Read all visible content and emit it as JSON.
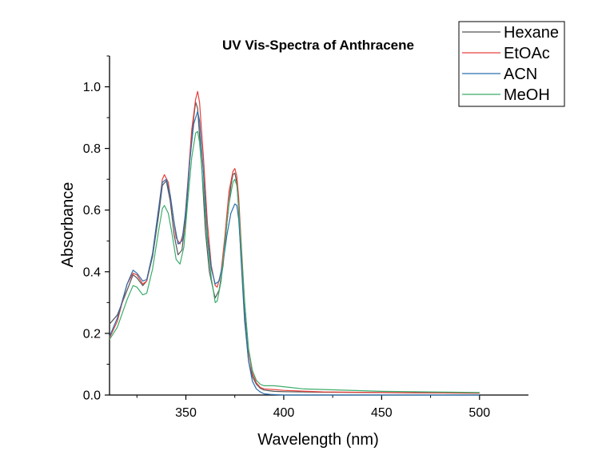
{
  "chart_data": {
    "type": "line",
    "title": "UV Vis-Spectra of Anthracene",
    "xlabel": "Wavelength (nm)",
    "ylabel": "Absorbance",
    "xlim": [
      311,
      525
    ],
    "ylim": [
      0,
      1.1
    ],
    "x_ticks": [
      350,
      400,
      450,
      500
    ],
    "x_tick_labels": [
      "350",
      "400",
      "450",
      "500"
    ],
    "y_ticks": [
      0.0,
      0.2,
      0.4,
      0.6,
      0.8,
      1.0
    ],
    "y_tick_labels": [
      "0.0",
      "0.2",
      "0.4",
      "0.6",
      "0.8",
      "1.0"
    ],
    "grid": false,
    "legend_position": "top-right",
    "series": [
      {
        "name": "Hexane",
        "color": "#555555",
        "points": [
          [
            311,
            0.23
          ],
          [
            315,
            0.26
          ],
          [
            320,
            0.34
          ],
          [
            323,
            0.39
          ],
          [
            325,
            0.38
          ],
          [
            328,
            0.355
          ],
          [
            330,
            0.37
          ],
          [
            333,
            0.45
          ],
          [
            336,
            0.58
          ],
          [
            338,
            0.68
          ],
          [
            340,
            0.695
          ],
          [
            342,
            0.63
          ],
          [
            344,
            0.52
          ],
          [
            346,
            0.455
          ],
          [
            348,
            0.47
          ],
          [
            350,
            0.58
          ],
          [
            352,
            0.76
          ],
          [
            354,
            0.9
          ],
          [
            355,
            0.95
          ],
          [
            356,
            0.93
          ],
          [
            358,
            0.75
          ],
          [
            360,
            0.53
          ],
          [
            362,
            0.4
          ],
          [
            364,
            0.34
          ],
          [
            365,
            0.315
          ],
          [
            367,
            0.34
          ],
          [
            369,
            0.42
          ],
          [
            371,
            0.56
          ],
          [
            373,
            0.68
          ],
          [
            374,
            0.715
          ],
          [
            375,
            0.72
          ],
          [
            376,
            0.69
          ],
          [
            377,
            0.6
          ],
          [
            378,
            0.46
          ],
          [
            380,
            0.24
          ],
          [
            382,
            0.11
          ],
          [
            384,
            0.06
          ],
          [
            386,
            0.035
          ],
          [
            388,
            0.022
          ],
          [
            390,
            0.016
          ],
          [
            395,
            0.012
          ],
          [
            400,
            0.011
          ],
          [
            420,
            0.009
          ],
          [
            450,
            0.008
          ],
          [
            500,
            0.006
          ]
        ]
      },
      {
        "name": "EtOAc",
        "color": "#e8413c",
        "points": [
          [
            311,
            0.185
          ],
          [
            315,
            0.24
          ],
          [
            320,
            0.36
          ],
          [
            323,
            0.395
          ],
          [
            325,
            0.39
          ],
          [
            328,
            0.36
          ],
          [
            330,
            0.37
          ],
          [
            333,
            0.46
          ],
          [
            336,
            0.6
          ],
          [
            338,
            0.7
          ],
          [
            339,
            0.715
          ],
          [
            341,
            0.69
          ],
          [
            343,
            0.6
          ],
          [
            345,
            0.51
          ],
          [
            347,
            0.49
          ],
          [
            349,
            0.53
          ],
          [
            351,
            0.69
          ],
          [
            353,
            0.86
          ],
          [
            355,
            0.96
          ],
          [
            356,
            0.985
          ],
          [
            357,
            0.95
          ],
          [
            359,
            0.77
          ],
          [
            361,
            0.56
          ],
          [
            363,
            0.42
          ],
          [
            365,
            0.355
          ],
          [
            366,
            0.35
          ],
          [
            368,
            0.4
          ],
          [
            370,
            0.52
          ],
          [
            372,
            0.66
          ],
          [
            374,
            0.725
          ],
          [
            375,
            0.735
          ],
          [
            376,
            0.71
          ],
          [
            377,
            0.64
          ],
          [
            378,
            0.52
          ],
          [
            380,
            0.3
          ],
          [
            382,
            0.14
          ],
          [
            384,
            0.07
          ],
          [
            386,
            0.04
          ],
          [
            388,
            0.025
          ],
          [
            390,
            0.02
          ],
          [
            395,
            0.018
          ],
          [
            400,
            0.015
          ],
          [
            420,
            0.01
          ],
          [
            450,
            0.008
          ],
          [
            500,
            0.006
          ]
        ]
      },
      {
        "name": "ACN",
        "color": "#2b6fad",
        "points": [
          [
            311,
            0.19
          ],
          [
            315,
            0.25
          ],
          [
            320,
            0.36
          ],
          [
            323,
            0.405
          ],
          [
            325,
            0.395
          ],
          [
            328,
            0.37
          ],
          [
            330,
            0.375
          ],
          [
            333,
            0.46
          ],
          [
            336,
            0.6
          ],
          [
            338,
            0.69
          ],
          [
            340,
            0.7
          ],
          [
            342,
            0.65
          ],
          [
            344,
            0.56
          ],
          [
            346,
            0.49
          ],
          [
            348,
            0.5
          ],
          [
            350,
            0.6
          ],
          [
            352,
            0.76
          ],
          [
            354,
            0.88
          ],
          [
            356,
            0.92
          ],
          [
            357,
            0.89
          ],
          [
            359,
            0.72
          ],
          [
            361,
            0.52
          ],
          [
            363,
            0.41
          ],
          [
            365,
            0.36
          ],
          [
            367,
            0.37
          ],
          [
            369,
            0.43
          ],
          [
            371,
            0.52
          ],
          [
            373,
            0.59
          ],
          [
            375,
            0.62
          ],
          [
            376,
            0.615
          ],
          [
            377,
            0.57
          ],
          [
            378,
            0.47
          ],
          [
            380,
            0.26
          ],
          [
            382,
            0.11
          ],
          [
            384,
            0.045
          ],
          [
            386,
            0.02
          ],
          [
            388,
            0.01
          ],
          [
            390,
            0.004
          ],
          [
            393,
            0.002
          ],
          [
            400,
            0.0
          ],
          [
            450,
            0.0
          ],
          [
            500,
            0.0
          ]
        ]
      },
      {
        "name": "MeOH",
        "color": "#3cac6b",
        "points": [
          [
            311,
            0.18
          ],
          [
            315,
            0.22
          ],
          [
            320,
            0.31
          ],
          [
            323,
            0.355
          ],
          [
            325,
            0.35
          ],
          [
            328,
            0.325
          ],
          [
            330,
            0.33
          ],
          [
            333,
            0.41
          ],
          [
            336,
            0.53
          ],
          [
            338,
            0.605
          ],
          [
            339,
            0.615
          ],
          [
            341,
            0.59
          ],
          [
            343,
            0.52
          ],
          [
            345,
            0.44
          ],
          [
            347,
            0.425
          ],
          [
            349,
            0.48
          ],
          [
            351,
            0.63
          ],
          [
            353,
            0.77
          ],
          [
            355,
            0.85
          ],
          [
            356,
            0.855
          ],
          [
            357,
            0.82
          ],
          [
            359,
            0.67
          ],
          [
            361,
            0.5
          ],
          [
            363,
            0.38
          ],
          [
            365,
            0.3
          ],
          [
            366,
            0.305
          ],
          [
            368,
            0.37
          ],
          [
            370,
            0.5
          ],
          [
            372,
            0.62
          ],
          [
            374,
            0.69
          ],
          [
            375,
            0.7
          ],
          [
            376,
            0.68
          ],
          [
            377,
            0.61
          ],
          [
            378,
            0.5
          ],
          [
            380,
            0.3
          ],
          [
            382,
            0.15
          ],
          [
            384,
            0.08
          ],
          [
            386,
            0.048
          ],
          [
            388,
            0.035
          ],
          [
            390,
            0.03
          ],
          [
            395,
            0.03
          ],
          [
            400,
            0.027
          ],
          [
            410,
            0.02
          ],
          [
            450,
            0.012
          ],
          [
            500,
            0.008
          ]
        ]
      }
    ]
  }
}
